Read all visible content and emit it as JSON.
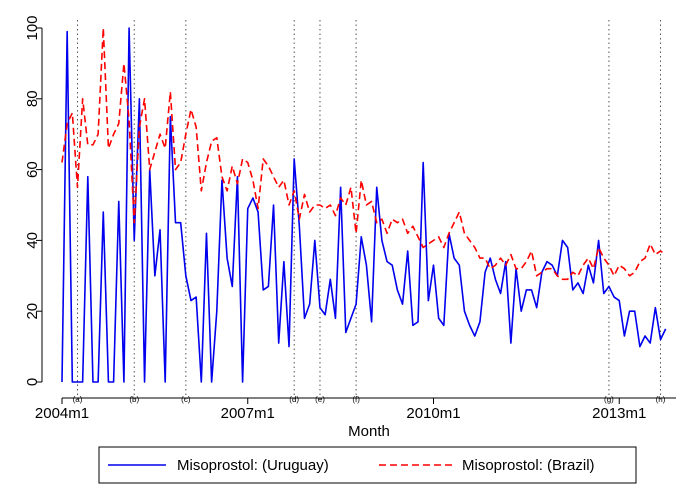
{
  "chart_data": {
    "type": "line",
    "title": "",
    "xlabel": "Month",
    "ylabel": "",
    "xlim": [
      "2004m1",
      "2013m12"
    ],
    "ylim": [
      0,
      100
    ],
    "yticks": [
      0,
      20,
      40,
      60,
      80,
      100
    ],
    "xticks": [
      {
        "label": "2004m1",
        "value": "2004m1"
      },
      {
        "label": "2007m1",
        "value": "2007m1"
      },
      {
        "label": "2010m1",
        "value": "2010m1"
      },
      {
        "label": "2013m1",
        "value": "2013m1"
      }
    ],
    "grid": false,
    "legend_position": "bottom",
    "event_markers": [
      {
        "label": "(a)",
        "x": "2004m4"
      },
      {
        "label": "(b)",
        "x": "2005m3"
      },
      {
        "label": "(c)",
        "x": "2006m1"
      },
      {
        "label": "(d)",
        "x": "2007m10"
      },
      {
        "label": "(e)",
        "x": "2008m3"
      },
      {
        "label": "(f)",
        "x": "2008m10"
      },
      {
        "label": "(g)",
        "x": "2012m11"
      },
      {
        "label": "(h)",
        "x": "2013m9"
      }
    ],
    "x_start": "2004m1",
    "x_end": "2013m12",
    "series": [
      {
        "name": "Misoprostol: (Uruguay)",
        "color": "#0000ee",
        "dash": "solid",
        "values": [
          0,
          99,
          0,
          0,
          0,
          58,
          0,
          0,
          48,
          0,
          0,
          51,
          0,
          100,
          40,
          80,
          0,
          60,
          30,
          43,
          0,
          75,
          45,
          45,
          30,
          23,
          24,
          0,
          42,
          0,
          20,
          57,
          35,
          27,
          58,
          0,
          49,
          52,
          48,
          26,
          27,
          50,
          11,
          34,
          10,
          63,
          44,
          18,
          22,
          40,
          21,
          19,
          29,
          18,
          55,
          14,
          18,
          22,
          41,
          33,
          17,
          55,
          40,
          34,
          33,
          26,
          22,
          37,
          16,
          17,
          62,
          23,
          33,
          18,
          16,
          42,
          35,
          33,
          20,
          16,
          13,
          17,
          31,
          35,
          29,
          25,
          34,
          11,
          32,
          20,
          26,
          26,
          21,
          31,
          34,
          33,
          30,
          40,
          38,
          26,
          28,
          25,
          33,
          28,
          40,
          25,
          27,
          24,
          23,
          13,
          20,
          20,
          10,
          13,
          11,
          21,
          12,
          15
        ]
      },
      {
        "name": "Misoprostol: (Brazil)",
        "color": "#ff0000",
        "dash": "dashed",
        "values": [
          62,
          73,
          76,
          55,
          80,
          67,
          67,
          70,
          100,
          66,
          70,
          73,
          90,
          74,
          45,
          72,
          80,
          60,
          65,
          70,
          66,
          82,
          60,
          62,
          70,
          77,
          72,
          54,
          62,
          68,
          69,
          58,
          54,
          61,
          56,
          63,
          62,
          57,
          49,
          63,
          61,
          58,
          55,
          57,
          50,
          54,
          46,
          53,
          48,
          50,
          50,
          49,
          50,
          47,
          52,
          50,
          55,
          42,
          57,
          50,
          51,
          45,
          46,
          42,
          46,
          45,
          46,
          42,
          44,
          41,
          38,
          39,
          40,
          41,
          38,
          42,
          45,
          48,
          42,
          40,
          38,
          35,
          35,
          32,
          33,
          35,
          33,
          36,
          32,
          32,
          34,
          37,
          30,
          31,
          32,
          32,
          30,
          29,
          29,
          31,
          30,
          33,
          35,
          32,
          38,
          35,
          33,
          30,
          33,
          32,
          30,
          31,
          34,
          35,
          39,
          36,
          37,
          36
        ]
      }
    ]
  }
}
